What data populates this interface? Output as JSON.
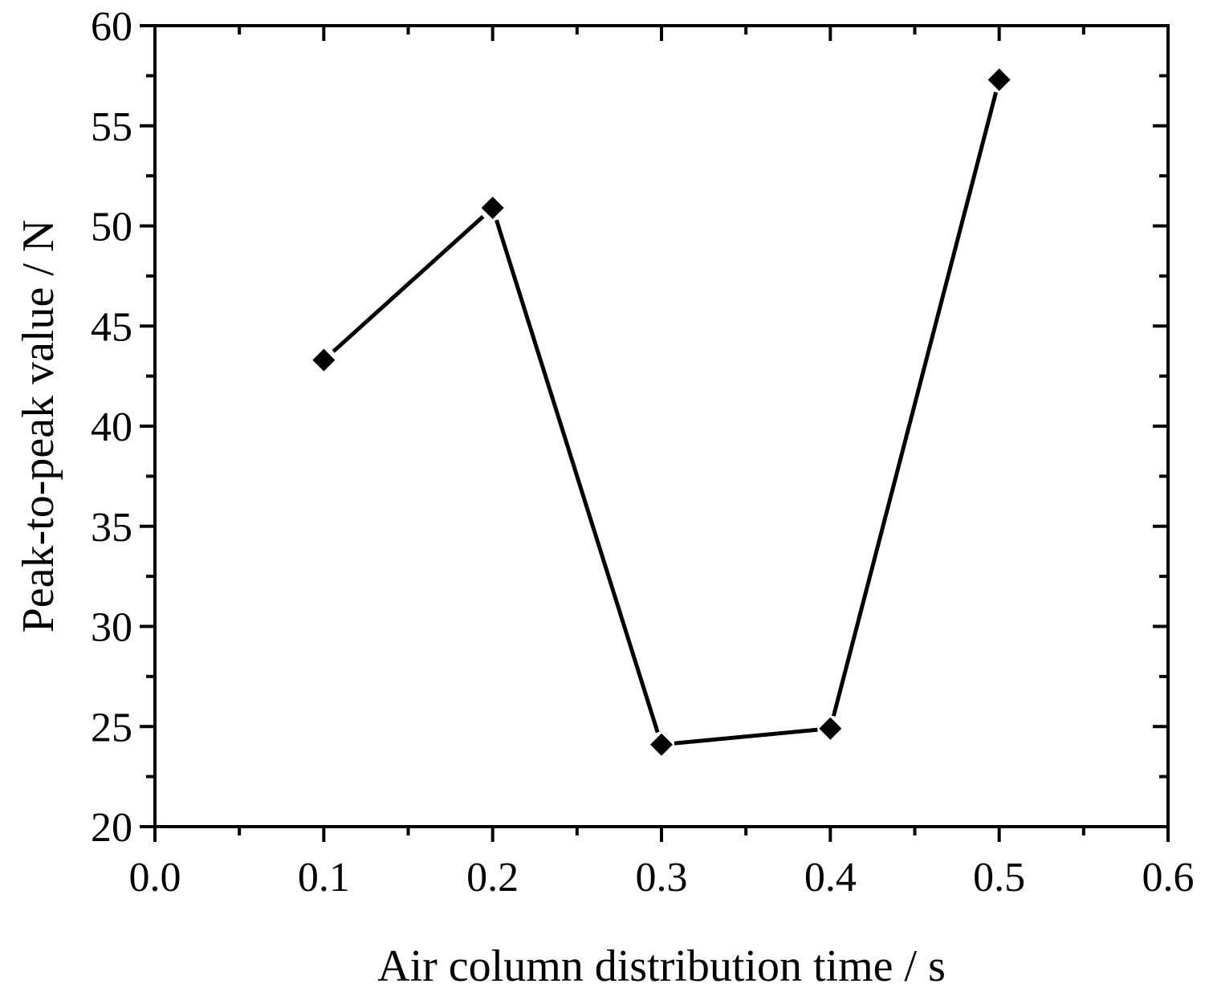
{
  "chart_data": {
    "type": "line",
    "xlabel": "Air column distribution time / s",
    "ylabel": "Peak-to-peak value / N",
    "xlim": [
      0.0,
      0.6
    ],
    "ylim": [
      20,
      60
    ],
    "x_ticks": [
      "0.0",
      "0.1",
      "0.2",
      "0.3",
      "0.4",
      "0.5",
      "0.6"
    ],
    "y_ticks": [
      "20",
      "25",
      "30",
      "35",
      "40",
      "45",
      "50",
      "55",
      "60"
    ],
    "grid": false,
    "marker": "diamond",
    "series": [
      {
        "x": [
          0.1,
          0.2,
          0.3,
          0.4,
          0.5
        ],
        "y": [
          43.3,
          50.9,
          24.1,
          24.9,
          57.3
        ]
      }
    ],
    "colors": {
      "line": "#000000",
      "marker": "#000000"
    }
  }
}
